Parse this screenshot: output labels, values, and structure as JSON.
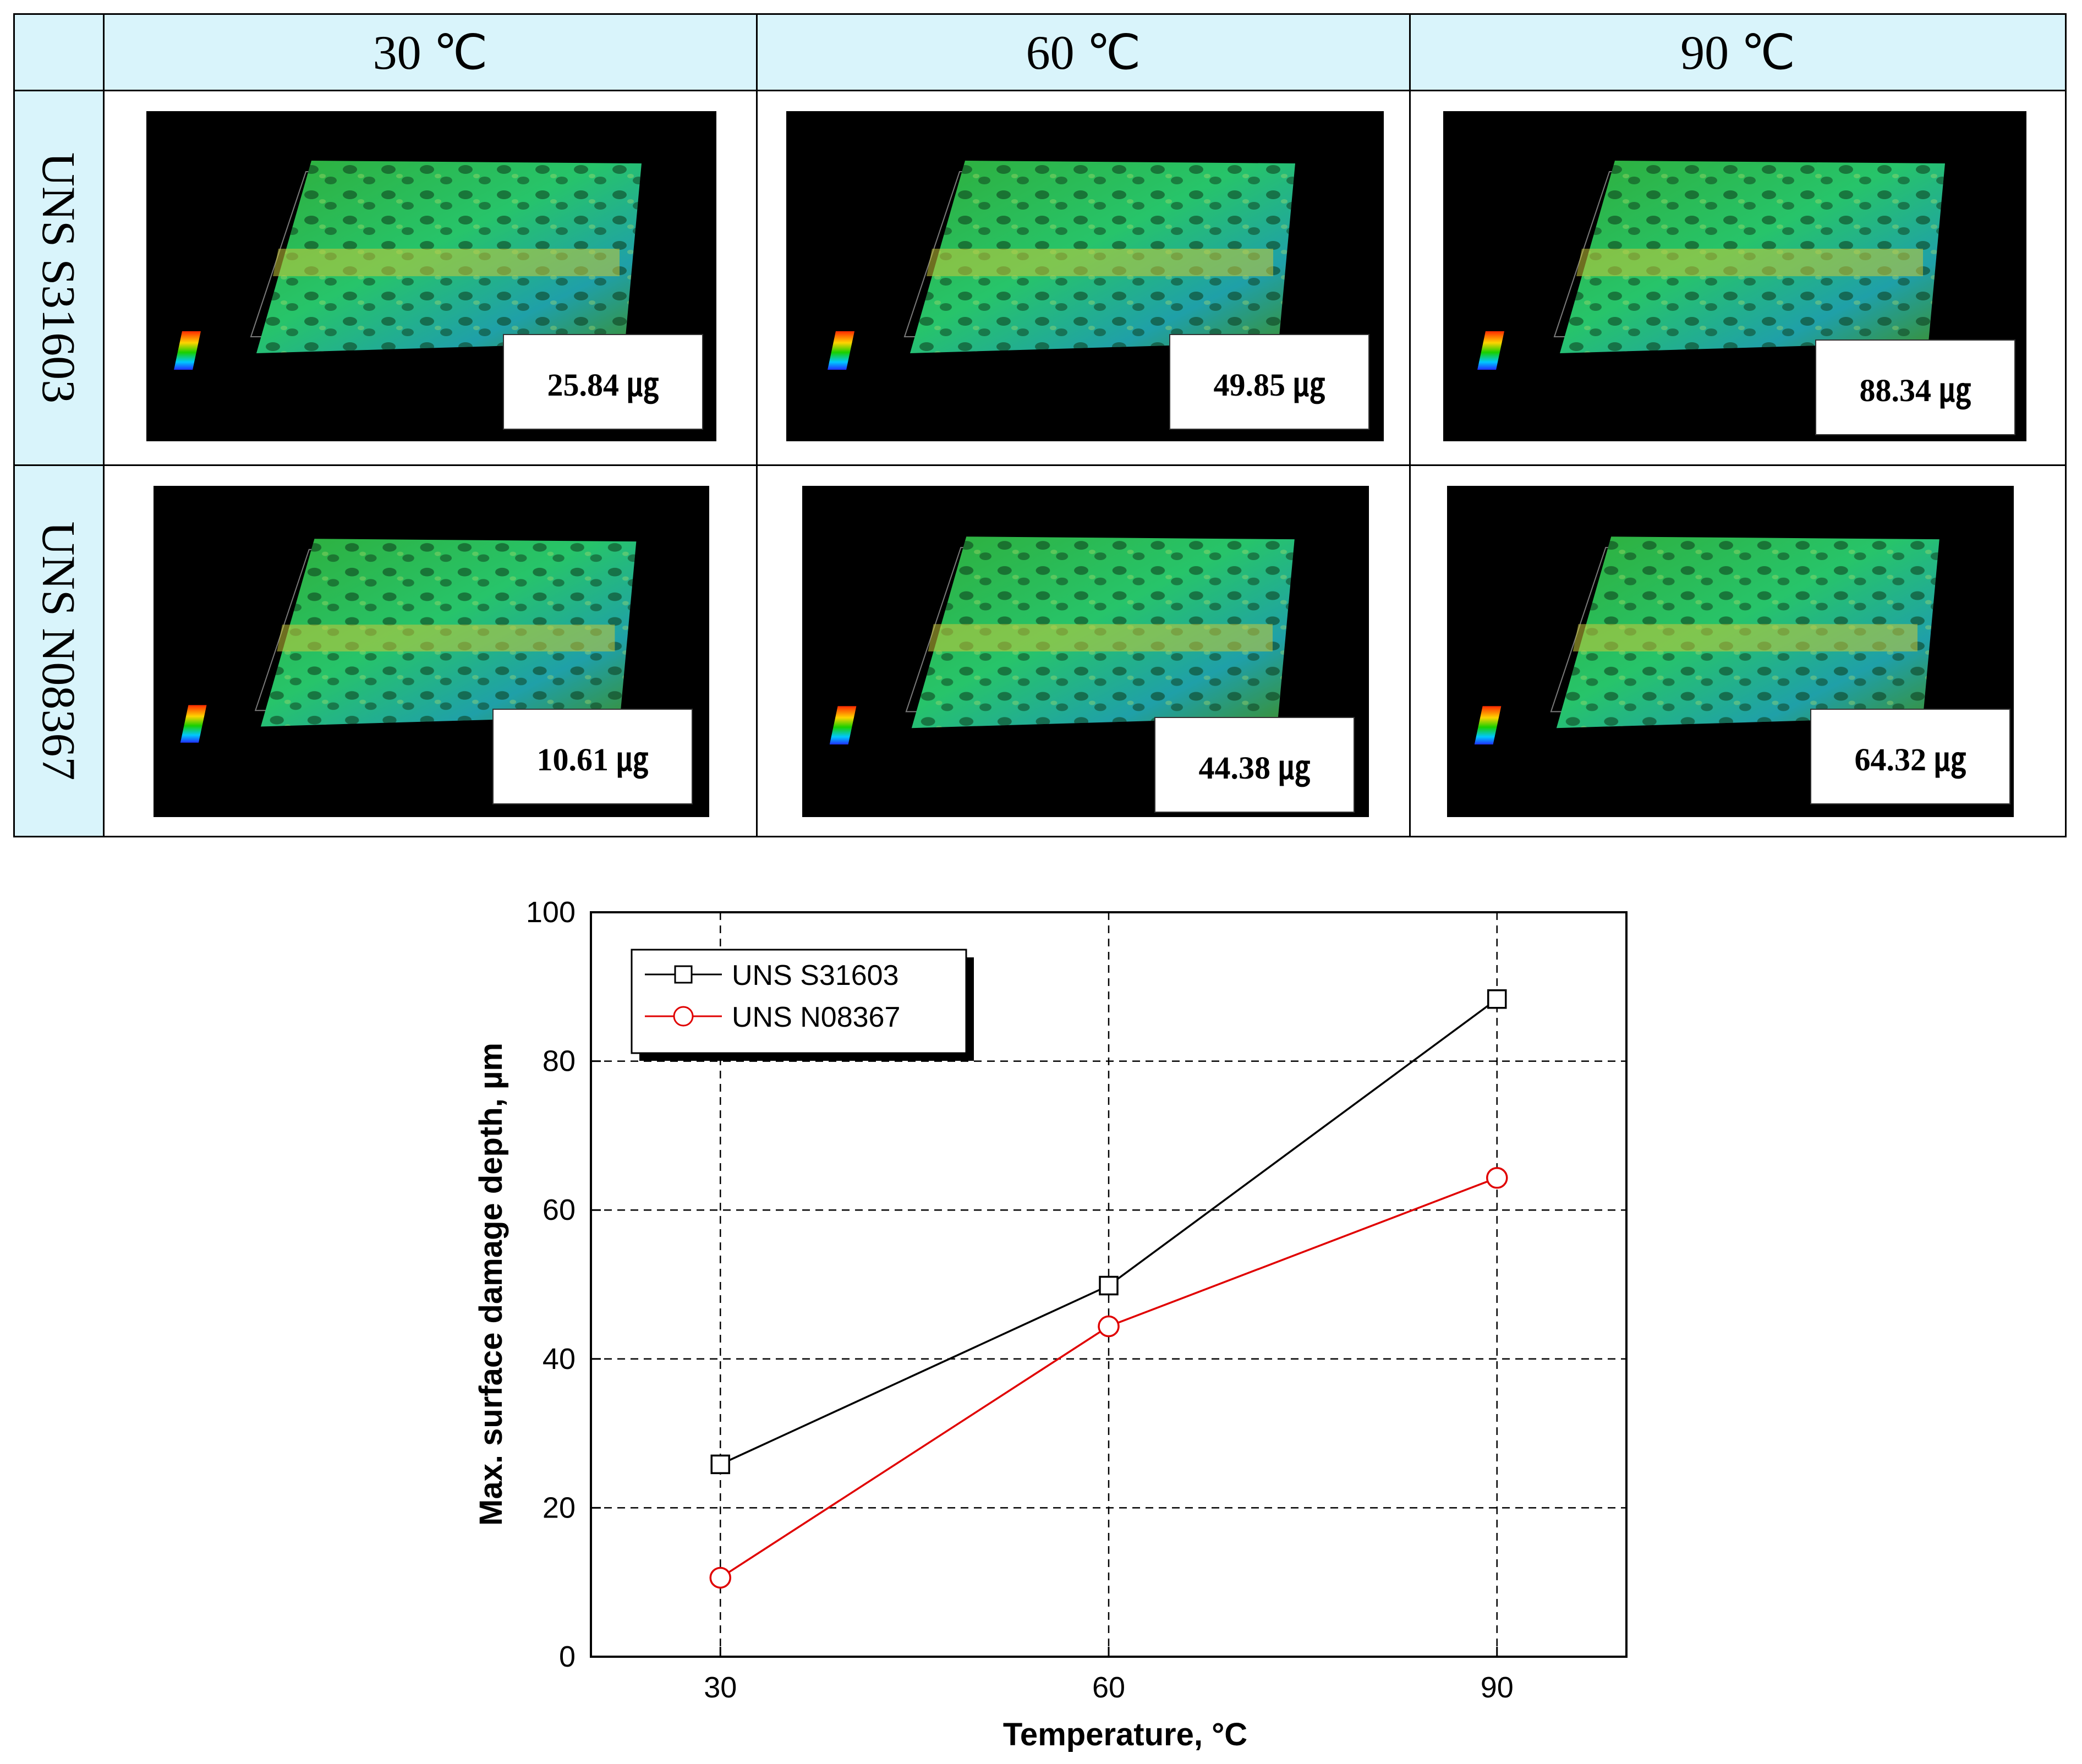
{
  "table": {
    "columns": [
      "30 ℃",
      "60 ℃",
      "90 ℃"
    ],
    "rows": [
      {
        "label": "UNS S31603",
        "values": [
          "25.84 ㎍",
          "49.85 ㎍",
          "88.34 ㎍"
        ]
      },
      {
        "label": "UNS N08367",
        "values": [
          "10.61 ㎍",
          "44.38 ㎍",
          "64.32 ㎍"
        ]
      }
    ]
  },
  "chart_data": {
    "type": "line",
    "x": [
      30,
      60,
      90
    ],
    "xticks": [
      "30",
      "60",
      "90"
    ],
    "yticks": [
      "0",
      "20",
      "40",
      "60",
      "80",
      "100"
    ],
    "xlabel": "Temperature, °C",
    "ylabel": "Max. surface damage depth, µm",
    "xlim": [
      20,
      100
    ],
    "ylim": [
      0,
      100
    ],
    "grid": true,
    "legend_position": "top-left",
    "series": [
      {
        "name": "UNS S31603",
        "values": [
          25.84,
          49.85,
          88.34
        ],
        "color": "#000000",
        "marker": "square"
      },
      {
        "name": "UNS N08367",
        "values": [
          10.61,
          44.38,
          64.32
        ],
        "color": "#e00000",
        "marker": "circle"
      }
    ]
  }
}
